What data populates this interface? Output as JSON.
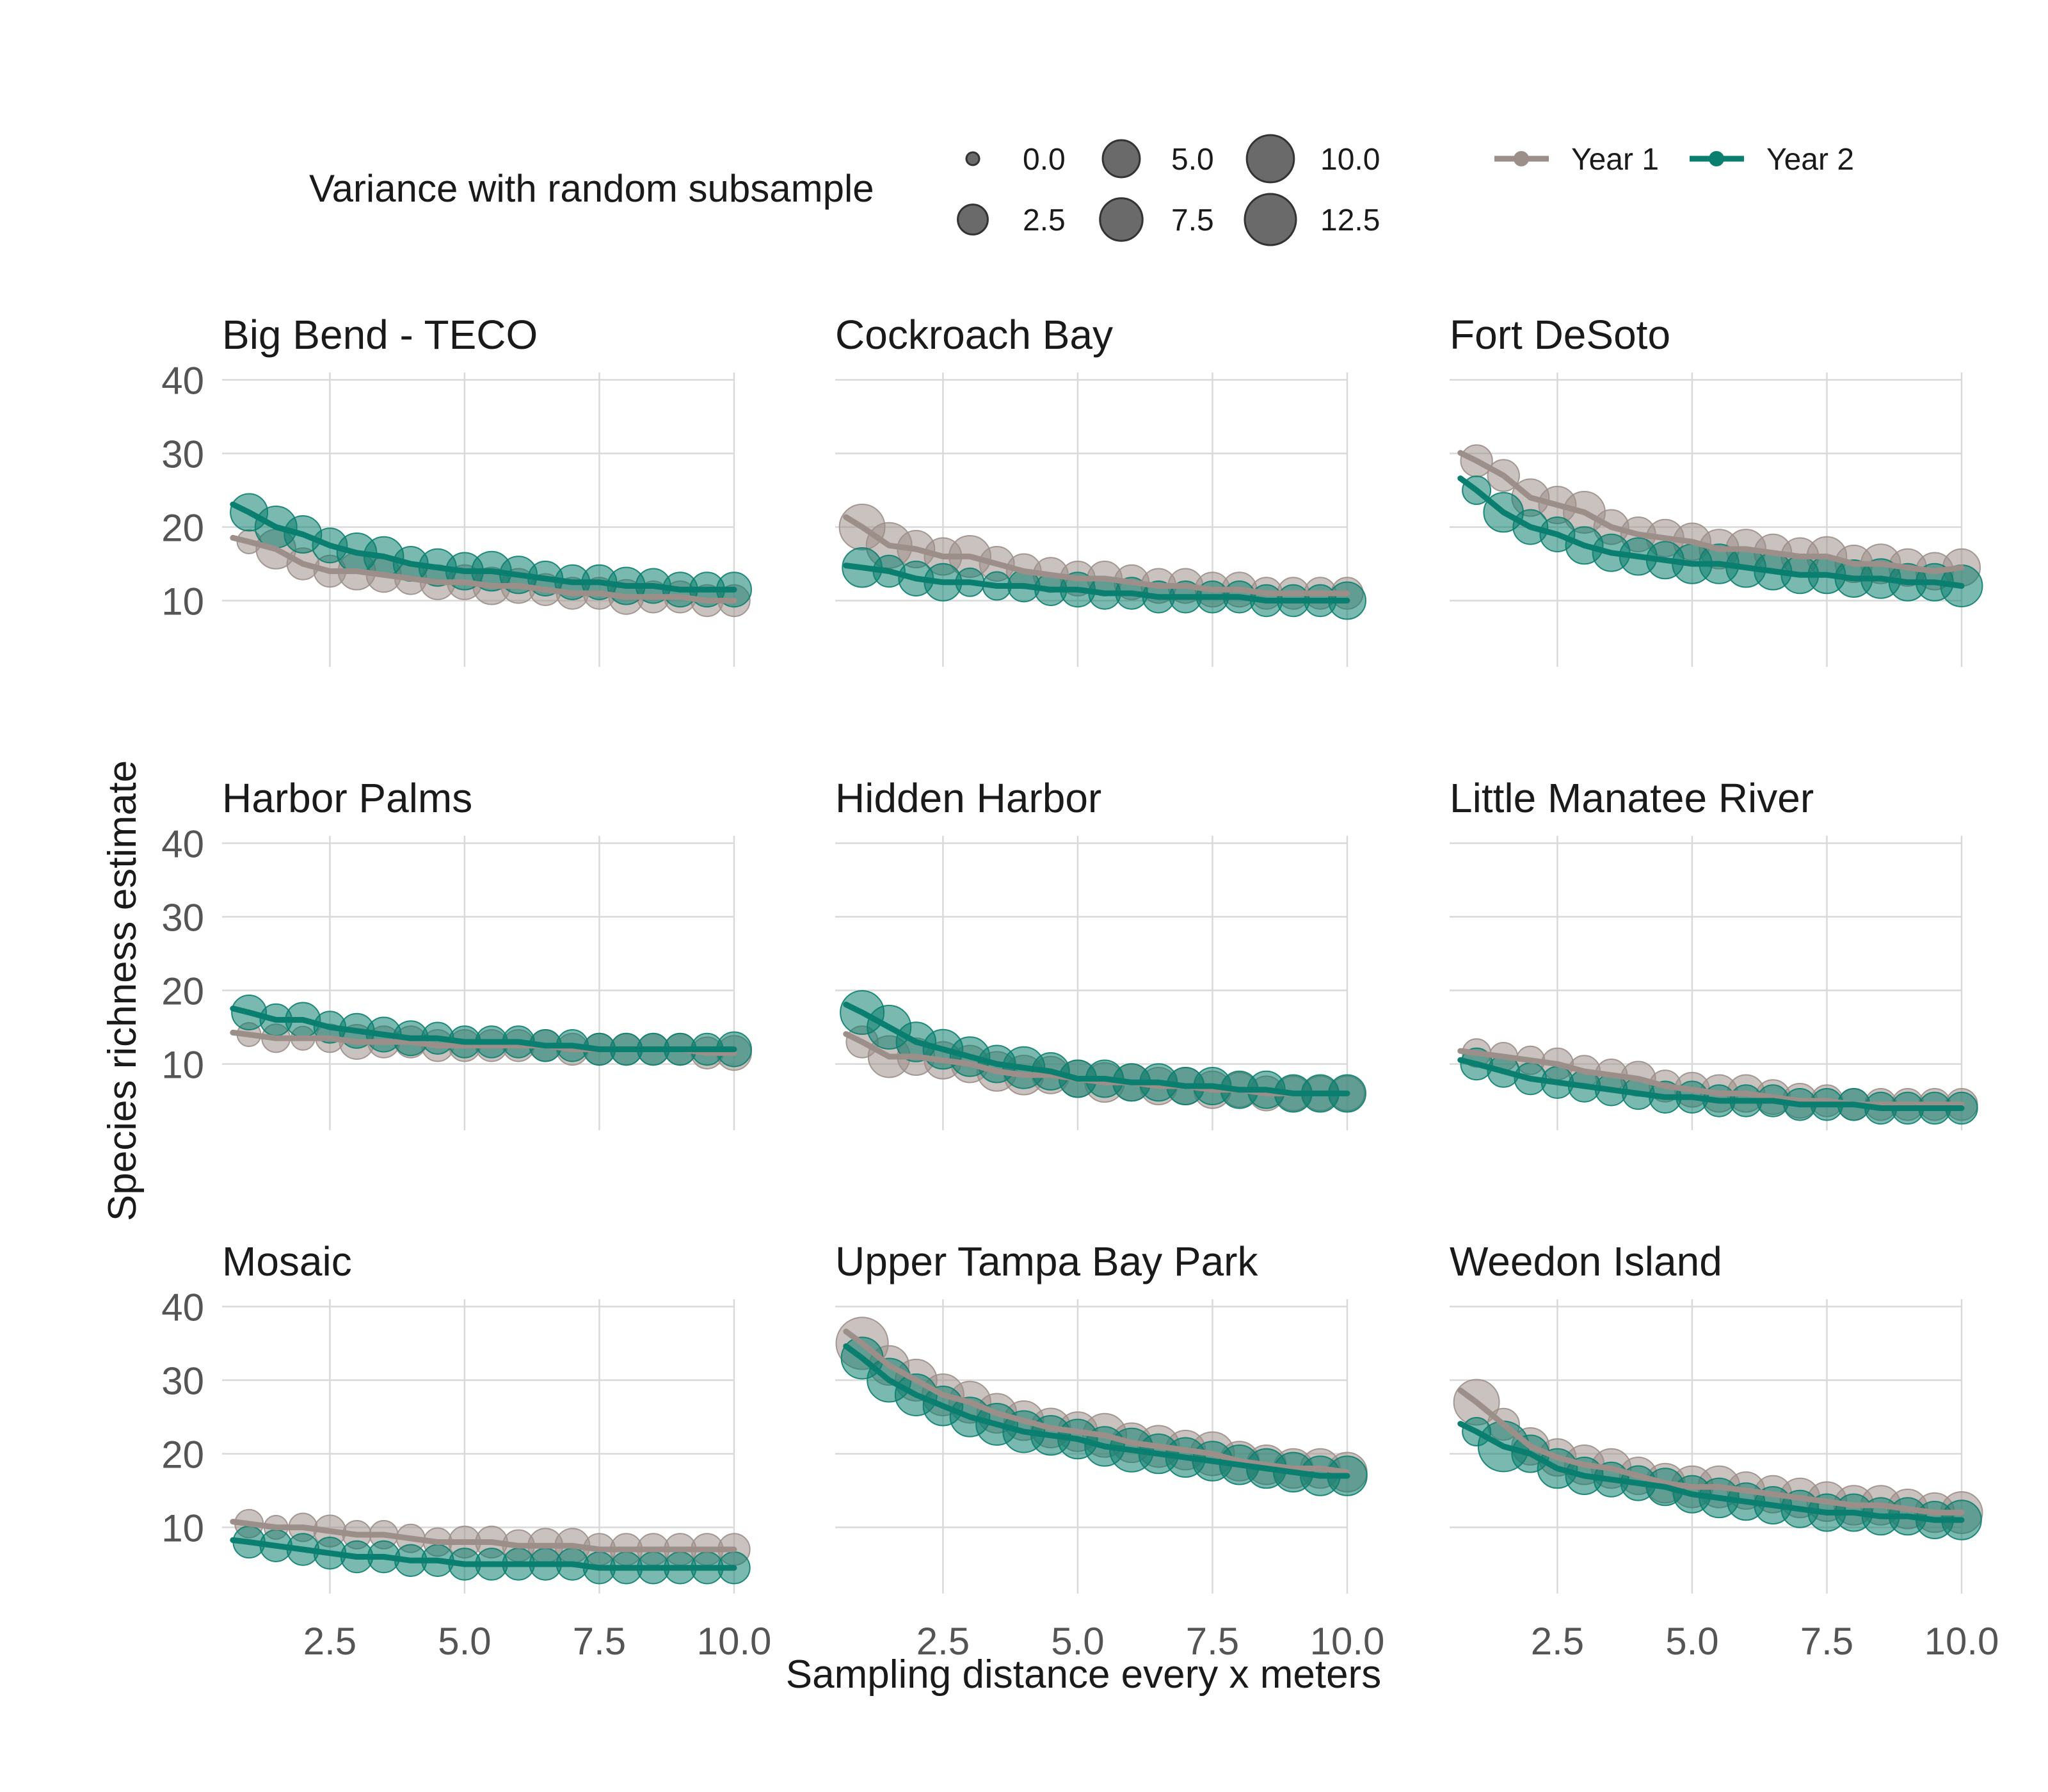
{
  "chart_data": {
    "type": "scatter",
    "ylabel": "Species richness estimate",
    "xlabel": "Sampling distance every x meters",
    "xlim": [
      0.5,
      10.0
    ],
    "ylim": [
      0,
      40
    ],
    "x_ticks": [
      "2.5",
      "5.0",
      "7.5",
      "10.0"
    ],
    "y_ticks": [
      "10",
      "20",
      "30",
      "40"
    ],
    "grid": true,
    "legend_position": "top",
    "size_legend": {
      "title": "Variance with random subsample",
      "entries": [
        "0.0",
        "2.5",
        "5.0",
        "7.5",
        "10.0",
        "12.5"
      ],
      "values": [
        0.0,
        2.5,
        5.0,
        7.5,
        10.0,
        12.5
      ]
    },
    "color_legend": [
      {
        "name": "Year 1",
        "color": "#9C8F8A"
      },
      {
        "name": "Year 2",
        "color": "#0B7F6F"
      }
    ],
    "series_colors": {
      "Year 1": "#9C8F8A",
      "Year 2": "#0B7F6F"
    },
    "x": [
      1.0,
      1.5,
      2.0,
      2.5,
      3.0,
      3.5,
      4.0,
      4.5,
      5.0,
      5.5,
      6.0,
      6.5,
      7.0,
      7.5,
      8.0,
      8.5,
      9.0,
      9.5,
      10.0
    ],
    "panels": [
      {
        "title": "Big Bend - TECO",
        "year1": {
          "y": [
            18,
            17,
            15,
            14,
            14,
            13.5,
            13,
            12.5,
            12.5,
            12,
            12,
            11.5,
            11,
            11,
            10.5,
            10.5,
            10.5,
            10,
            10
          ],
          "v": [
            1,
            6,
            3,
            3,
            5,
            4,
            3,
            4,
            4,
            5,
            4,
            3,
            3,
            3,
            4,
            3,
            3,
            3,
            3
          ]
        },
        "year2": {
          "y": [
            22,
            20,
            19,
            17.5,
            16.5,
            16,
            15,
            14.5,
            14,
            14,
            13.5,
            13,
            12.5,
            12.5,
            12,
            12,
            11.5,
            11.5,
            11.5
          ],
          "v": [
            5,
            7,
            5,
            4,
            6,
            6,
            4,
            5,
            5,
            6,
            5,
            4,
            4,
            4,
            5,
            4,
            4,
            4,
            4
          ]
        }
      },
      {
        "title": "Cockroach Bay",
        "year1": {
          "y": [
            20,
            17.5,
            17,
            16,
            16,
            15,
            14,
            13.5,
            13,
            13,
            12.5,
            12,
            12,
            11.5,
            11.5,
            11,
            11,
            11,
            11
          ],
          "v": [
            9,
            9,
            5,
            5,
            7,
            4,
            4,
            4,
            4,
            4,
            4,
            4,
            4,
            4,
            4,
            3,
            3,
            3,
            3
          ]
        },
        "year2": {
          "y": [
            14.5,
            14,
            13,
            12.5,
            12.5,
            12,
            12,
            11.5,
            11.5,
            11,
            11,
            10.5,
            10.5,
            10.5,
            10.5,
            10,
            10,
            10,
            10
          ],
          "v": [
            6,
            3,
            4,
            5,
            2,
            2,
            3,
            3,
            4,
            3,
            3,
            3,
            3,
            3,
            3,
            3,
            3,
            3,
            5
          ]
        }
      },
      {
        "title": "Fort DeSoto",
        "year1": {
          "y": [
            29,
            27,
            24,
            23,
            22,
            20,
            19,
            18.5,
            18,
            17,
            17,
            16.5,
            16,
            16,
            15,
            15,
            14.5,
            14,
            14.5
          ],
          "v": [
            3,
            3,
            5,
            5,
            7,
            4,
            4,
            5,
            5,
            6,
            6,
            5,
            5,
            6,
            5,
            6,
            5,
            5,
            5
          ]
        },
        "year2": {
          "y": [
            25,
            22,
            20,
            19,
            17.5,
            16.5,
            16,
            15.5,
            15,
            15,
            14.5,
            14,
            13.5,
            13.5,
            13,
            13,
            12.5,
            12.5,
            12
          ],
          "v": [
            2,
            6,
            4,
            4,
            5,
            5,
            5,
            5,
            6,
            6,
            6,
            5,
            5,
            5,
            5,
            6,
            5,
            5,
            7
          ]
        }
      },
      {
        "title": "Harbor Palms",
        "year1": {
          "y": [
            14,
            13.5,
            13.5,
            13.5,
            13,
            13,
            13,
            12.5,
            12.5,
            12.5,
            12.5,
            12.5,
            12,
            12,
            12,
            12,
            12,
            11.5,
            11.5
          ],
          "v": [
            1,
            2,
            1,
            2,
            4,
            3,
            3,
            3,
            3,
            3,
            3,
            3,
            3,
            3,
            3,
            3,
            3,
            3,
            4
          ]
        },
        "year2": {
          "y": [
            17,
            16,
            16,
            15,
            14.5,
            14,
            13.5,
            13.5,
            13,
            13,
            13,
            12.5,
            12.5,
            12,
            12,
            12,
            12,
            12,
            12
          ],
          "v": [
            4,
            3,
            4,
            3,
            4,
            4,
            4,
            3,
            3,
            3,
            3,
            3,
            3,
            3,
            3,
            3,
            3,
            3,
            4
          ]
        }
      },
      {
        "title": "Hidden Harbor",
        "year1": {
          "y": [
            13,
            11,
            11,
            10.5,
            10,
            9,
            8.5,
            8.5,
            8,
            7.5,
            7.5,
            7,
            7,
            6.5,
            6.5,
            6,
            6,
            6,
            6
          ],
          "v": [
            3,
            7,
            5,
            5,
            5,
            6,
            6,
            5,
            5,
            6,
            5,
            5,
            5,
            5,
            4,
            4,
            4,
            4,
            4
          ]
        },
        "year2": {
          "y": [
            17,
            15,
            13,
            12,
            11,
            10,
            9.5,
            9,
            8,
            8,
            7.5,
            7.5,
            7,
            7,
            6.5,
            6.5,
            6,
            6,
            6
          ],
          "v": [
            8,
            8,
            6,
            6,
            6,
            5,
            7,
            5,
            5,
            5,
            5,
            5,
            5,
            5,
            5,
            5,
            5,
            5,
            5
          ]
        }
      },
      {
        "title": "Little Manatee River",
        "year1": {
          "y": [
            11.5,
            11,
            10.5,
            10,
            9,
            8.5,
            8,
            7,
            6.5,
            6,
            6,
            5.5,
            5,
            5,
            4.5,
            4.5,
            4.5,
            4.5,
            4.5
          ],
          "v": [
            2,
            2,
            2,
            3,
            3,
            3,
            4,
            3,
            4,
            5,
            5,
            4,
            4,
            3,
            3,
            3,
            3,
            3,
            3
          ]
        },
        "year2": {
          "y": [
            10,
            9,
            8,
            7.5,
            7,
            6.5,
            6,
            5.5,
            5.5,
            5,
            5,
            5,
            4.5,
            4.5,
            4.5,
            4,
            4,
            4,
            4
          ]
        }
      },
      {
        "title": "Mosaic",
        "year1": {
          "y": [
            10.5,
            10,
            10,
            9.5,
            9,
            9,
            8.5,
            8,
            8,
            8,
            7.5,
            7.5,
            7.5,
            7,
            7,
            7,
            7,
            7,
            7
          ],
          "v": [
            2,
            1,
            2,
            3,
            2,
            2,
            2,
            2,
            3,
            3,
            3,
            4,
            4,
            3,
            3,
            3,
            3,
            3,
            3
          ]
        },
        "year2": {
          "y": [
            8,
            7.5,
            7,
            6.5,
            6,
            6,
            5.5,
            5.5,
            5,
            5,
            5,
            5,
            5,
            4.5,
            4.5,
            4.5,
            4.5,
            4.5,
            4.5
          ]
        }
      },
      {
        "title": "Upper Tampa Bay Park",
        "year1": {
          "y": [
            35,
            32,
            30,
            28,
            27,
            25.5,
            24.5,
            23.5,
            23,
            22.5,
            21.5,
            21,
            20.5,
            20,
            19,
            18.5,
            18,
            18,
            17.5
          ],
          "v": [
            13,
            6,
            7,
            7,
            7,
            6,
            6,
            6,
            6,
            8,
            6,
            7,
            6,
            8,
            6,
            6,
            6,
            6,
            6
          ]
        },
        "year2": {
          "y": [
            33,
            30,
            28,
            26.5,
            25,
            24,
            23,
            22.5,
            22,
            21,
            20.5,
            20,
            19.5,
            19,
            18.5,
            18,
            17.5,
            17,
            17
          ],
          "v": [
            7,
            8,
            7,
            6,
            6,
            7,
            7,
            6,
            6,
            6,
            8,
            6,
            6,
            6,
            6,
            6,
            6,
            6,
            6
          ]
        }
      },
      {
        "title": "Weedon Island",
        "year1": {
          "y": [
            27,
            24,
            21,
            19.5,
            18.5,
            18,
            17,
            16,
            15.5,
            15.5,
            15,
            14.5,
            14,
            13.5,
            13,
            13,
            12.5,
            12,
            12
          ],
          "v": [
            9,
            3,
            5,
            5,
            6,
            6,
            5,
            6,
            7,
            7,
            5,
            5,
            6,
            6,
            6,
            6,
            6,
            6,
            7
          ]
        },
        "year2": {
          "y": [
            23,
            21,
            20,
            18,
            17,
            16.5,
            16,
            15.5,
            14.5,
            14,
            13.5,
            13,
            12.5,
            12,
            12,
            11.5,
            11.5,
            11,
            11
          ],
          "v": [
            2,
            12,
            5,
            6,
            5,
            4,
            4,
            5,
            5,
            6,
            5,
            5,
            5,
            5,
            5,
            5,
            5,
            5,
            6
          ]
        }
      }
    ]
  }
}
